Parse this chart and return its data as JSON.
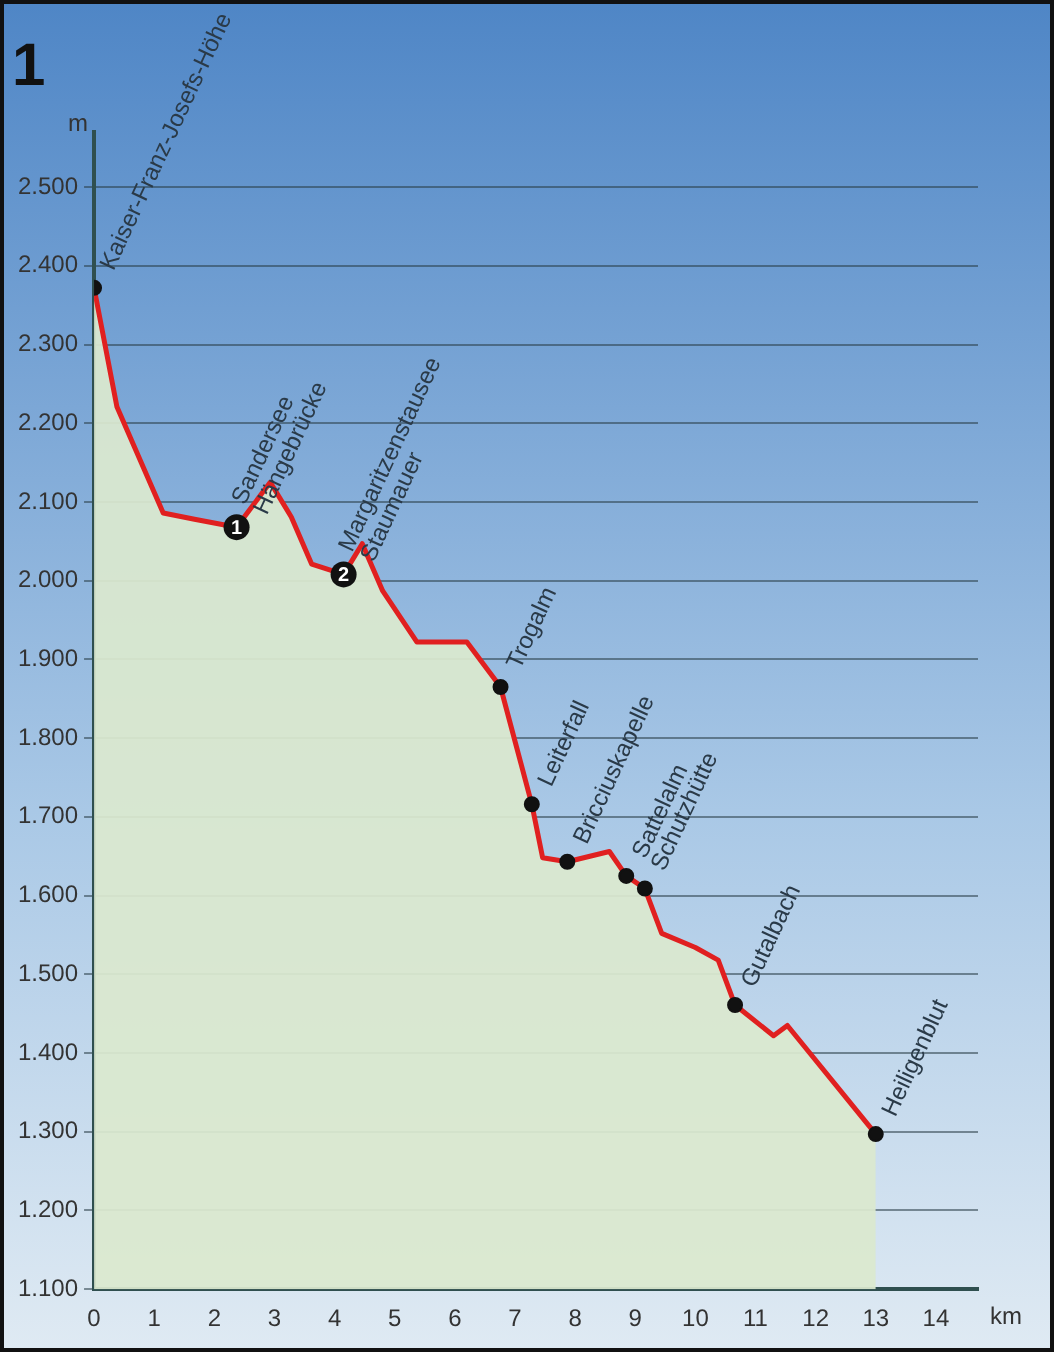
{
  "chart_data": {
    "type": "area",
    "title": "1",
    "xlabel": "km",
    "ylabel": "m",
    "xlim": [
      0,
      14.7
    ],
    "xticks": [
      0,
      1,
      2,
      3,
      4,
      5,
      6,
      7,
      8,
      9,
      10,
      11,
      12,
      13,
      14
    ],
    "ylim": [
      1100,
      2570
    ],
    "yticks": [
      {
        "value": 1100,
        "label": "1.100"
      },
      {
        "value": 1200,
        "label": "1.200"
      },
      {
        "value": 1300,
        "label": "1.300"
      },
      {
        "value": 1400,
        "label": "1.400"
      },
      {
        "value": 1500,
        "label": "1.500"
      },
      {
        "value": 1600,
        "label": "1.600"
      },
      {
        "value": 1700,
        "label": "1.700"
      },
      {
        "value": 1800,
        "label": "1.800"
      },
      {
        "value": 1900,
        "label": "1.900"
      },
      {
        "value": 2000,
        "label": "2.000"
      },
      {
        "value": 2100,
        "label": "2.100"
      },
      {
        "value": 2200,
        "label": "2.200"
      },
      {
        "value": 2300,
        "label": "2.300"
      },
      {
        "value": 2400,
        "label": "2.400"
      },
      {
        "value": 2500,
        "label": "2.500"
      }
    ],
    "grid": "y",
    "marker": "none",
    "line_style": "solid",
    "series": [
      {
        "color": "#e02020",
        "x": [
          0,
          0.38,
          1.15,
          1.67,
          2.37,
          2.93,
          3.28,
          3.62,
          4.15,
          4.46,
          4.8,
          5.37,
          6.2,
          6.76,
          7.28,
          7.46,
          7.87,
          8.57,
          8.85,
          9.16,
          9.44,
          10.0,
          10.38,
          10.66,
          11.3,
          11.53,
          13.0
        ],
        "values": [
          2372,
          2221,
          2086,
          2078,
          2068,
          2125,
          2081,
          2021,
          2008,
          2047,
          1987,
          1922,
          1922,
          1865,
          1716,
          1648,
          1643,
          1656,
          1625,
          1609,
          1552,
          1534,
          1518,
          1461,
          1422,
          1435,
          1297
        ]
      },
      {
        "type": "scatter",
        "color": "#111111",
        "marker": "circle",
        "x": [
          0,
          6.76,
          7.28,
          7.87,
          8.85,
          9.16,
          10.66,
          13.0
        ],
        "values": [
          2372,
          1865,
          1716,
          1643,
          1625,
          1609,
          1461,
          1297
        ]
      }
    ],
    "annotations": [
      {
        "text": "Kaiser-Franz-Josefs-Höhe",
        "x": 0,
        "y": 2372
      },
      {
        "text": "1",
        "x": 2.37,
        "y": 2068
      },
      {
        "text": "Sandersee Hängebrücke",
        "x": 2.37,
        "y": 2068
      },
      {
        "text": "2",
        "x": 4.15,
        "y": 2008
      },
      {
        "text": "Margaritzenstausee Staumauer",
        "x": 4.15,
        "y": 2008
      },
      {
        "text": "Trogalm",
        "x": 6.76,
        "y": 1865
      },
      {
        "text": "Leiterfall",
        "x": 7.28,
        "y": 1716
      },
      {
        "text": "Bricciuskapelle",
        "x": 7.87,
        "y": 1643
      },
      {
        "text": "Sattelalm",
        "x": 8.85,
        "y": 1625
      },
      {
        "text": "Schutzhütte",
        "x": 9.16,
        "y": 1609
      },
      {
        "text": "Gutalbach",
        "x": 10.66,
        "y": 1461
      },
      {
        "text": "Heiligenblut",
        "x": 13.0,
        "y": 1297
      }
    ]
  }
}
